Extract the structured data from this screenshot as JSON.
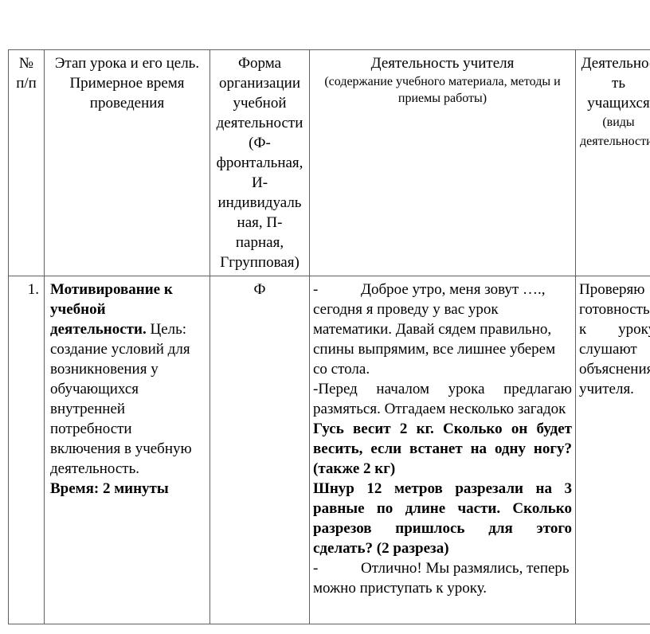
{
  "table": {
    "header": {
      "num": "№ п/п",
      "stage": "Этап урока и его цель. Примерное время проведения",
      "form": "Форма организации учебной деятельности (Ф-фронтальная, И-индивидуальная, П-парная, Ггрупповая)",
      "teacher_title": "Деятельность учителя",
      "teacher_subtitle": "(содержание учебного материала, методы и приемы работы)",
      "students_title": "Деятельность учащихся",
      "students_subtitle": "(виды деятельности)"
    },
    "rows": [
      {
        "number": "1.",
        "stage": {
          "title": "Мотивирование к учебной деятельности.",
          "goal": "Цель: создание условий для возникновения у обучающихся внутренней потребности включения в учебную деятельность.",
          "time": "Время: 2 минуты"
        },
        "form": "Ф",
        "teacher": {
          "p1_dash": "-",
          "p1": "Доброе утро, меня зовут …., сегодня я проведу у вас урок математики. Давай сядем правильно, спины выпрямим, все лишнее уберем со стола.",
          "p2": "-Перед началом урока предлагаю размяться. Отгадаем несколько загадок",
          "p3": "Гусь весит 2 кг. Сколько он будет весить, если встанет на одну ногу? (также 2 кг)",
          "p4": "Шнур 12 метров разрезали на 3 равные по длине части. Сколько разрезов пришлось для этого сделать? (2 разреза)",
          "p5_dash": "-",
          "p5": "Отлично! Мы размялись, теперь можно приступать к уроку."
        },
        "students": "Проверяю готовность к уроку, слушают объяснения учителя."
      }
    ]
  }
}
